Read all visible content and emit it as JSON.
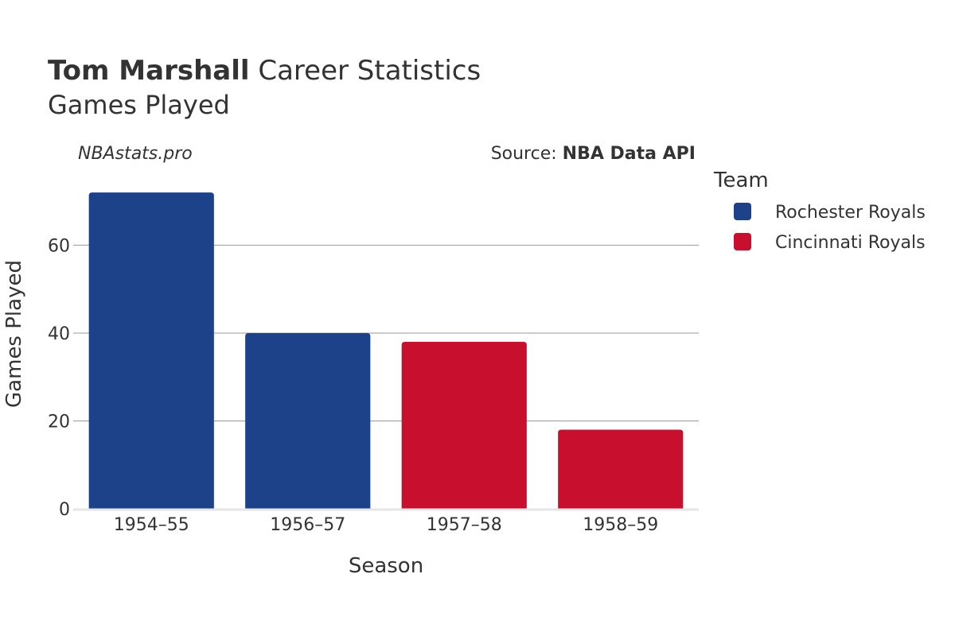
{
  "header": {
    "title_bold": "Tom Marshall",
    "title_rest": " Career Statistics",
    "subtitle": "Games Played"
  },
  "watermark": "NBAstats.pro",
  "source": {
    "prefix": "Source: ",
    "name": "NBA Data API"
  },
  "legend": {
    "title": "Team",
    "items": [
      {
        "label": "Rochester Royals",
        "color": "#1d428a"
      },
      {
        "label": "Cincinnati Royals",
        "color": "#c8102e"
      }
    ]
  },
  "chart_data": {
    "type": "bar",
    "xlabel": "Season",
    "ylabel": "Games Played",
    "categories": [
      "1954–55",
      "1956–57",
      "1957–58",
      "1958–59"
    ],
    "values": [
      72,
      40,
      38,
      18
    ],
    "bar_teams": [
      "Rochester Royals",
      "Rochester Royals",
      "Cincinnati Royals",
      "Cincinnati Royals"
    ],
    "bar_colors": [
      "#1d428a",
      "#1d428a",
      "#c8102e",
      "#c8102e"
    ],
    "yticks": [
      0,
      20,
      40,
      60
    ],
    "ylim": [
      0,
      76
    ],
    "grid": true,
    "legend_position": "right"
  }
}
